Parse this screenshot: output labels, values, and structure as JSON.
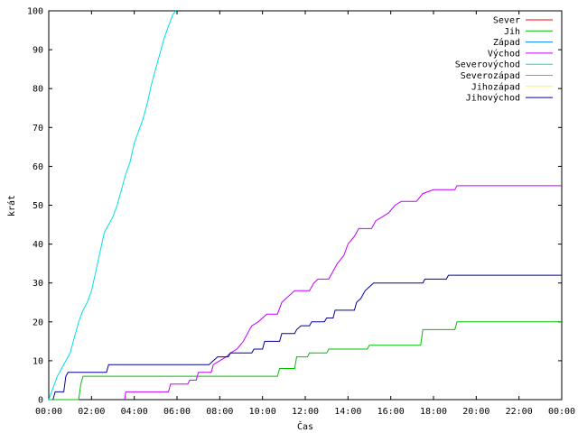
{
  "chart_data": {
    "type": "line",
    "xlabel": "Čas",
    "ylabel": "krát",
    "xlim": [
      0,
      24
    ],
    "ylim": [
      0,
      100
    ],
    "x_ticks": [
      {
        "x": 0,
        "label": "00:00"
      },
      {
        "x": 2,
        "label": "02:00"
      },
      {
        "x": 4,
        "label": "04:00"
      },
      {
        "x": 6,
        "label": "06:00"
      },
      {
        "x": 8,
        "label": "08:00"
      },
      {
        "x": 10,
        "label": "10:00"
      },
      {
        "x": 12,
        "label": "12:00"
      },
      {
        "x": 14,
        "label": "14:00"
      },
      {
        "x": 16,
        "label": "16:00"
      },
      {
        "x": 18,
        "label": "18:00"
      },
      {
        "x": 20,
        "label": "20:00"
      },
      {
        "x": 22,
        "label": "22:00"
      },
      {
        "x": 24,
        "label": "00:00"
      }
    ],
    "y_ticks": [
      0,
      10,
      20,
      30,
      40,
      50,
      60,
      70,
      80,
      90,
      100
    ],
    "legend_position": "top-right",
    "series": [
      {
        "name": "Sever",
        "color": "#ff0000",
        "points": []
      },
      {
        "name": "Jih",
        "color": "#00c000",
        "points": [
          [
            0,
            0
          ],
          [
            1.4,
            0
          ],
          [
            1.5,
            4
          ],
          [
            1.6,
            6
          ],
          [
            10.7,
            6
          ],
          [
            10.8,
            8
          ],
          [
            11.5,
            8
          ],
          [
            11.6,
            11
          ],
          [
            12.1,
            11
          ],
          [
            12.2,
            12
          ],
          [
            13.0,
            12
          ],
          [
            13.1,
            13
          ],
          [
            14.9,
            13
          ],
          [
            15.0,
            14
          ],
          [
            17.4,
            14
          ],
          [
            17.5,
            18
          ],
          [
            19.0,
            18
          ],
          [
            19.1,
            20
          ],
          [
            24,
            20
          ]
        ]
      },
      {
        "name": "Západ",
        "color": "#0080ff",
        "points": []
      },
      {
        "name": "Východ",
        "color": "#c000ff",
        "points": [
          [
            3.55,
            0
          ],
          [
            3.6,
            2
          ],
          [
            5.6,
            2
          ],
          [
            5.7,
            4
          ],
          [
            6.5,
            4
          ],
          [
            6.6,
            5
          ],
          [
            6.9,
            5
          ],
          [
            7.0,
            7
          ],
          [
            7.6,
            7
          ],
          [
            7.7,
            9
          ],
          [
            8.0,
            10
          ],
          [
            8.3,
            11
          ],
          [
            8.5,
            12
          ],
          [
            8.8,
            13
          ],
          [
            9.1,
            15
          ],
          [
            9.3,
            17
          ],
          [
            9.5,
            19
          ],
          [
            9.8,
            20
          ],
          [
            10.0,
            21
          ],
          [
            10.2,
            22
          ],
          [
            10.7,
            22
          ],
          [
            10.9,
            25
          ],
          [
            11.1,
            26
          ],
          [
            11.3,
            27
          ],
          [
            11.5,
            28
          ],
          [
            12.2,
            28
          ],
          [
            12.4,
            30
          ],
          [
            12.6,
            31
          ],
          [
            13.1,
            31
          ],
          [
            13.3,
            33
          ],
          [
            13.5,
            35
          ],
          [
            13.8,
            37
          ],
          [
            14.0,
            40
          ],
          [
            14.3,
            42
          ],
          [
            14.5,
            44
          ],
          [
            15.1,
            44
          ],
          [
            15.3,
            46
          ],
          [
            15.6,
            47
          ],
          [
            15.9,
            48
          ],
          [
            16.2,
            50
          ],
          [
            16.5,
            51
          ],
          [
            17.2,
            51
          ],
          [
            17.5,
            53
          ],
          [
            18.0,
            54
          ],
          [
            19.0,
            54
          ],
          [
            19.1,
            55
          ],
          [
            24,
            55
          ]
        ]
      },
      {
        "name": "Severovýchod",
        "color": "#00e0e0",
        "points": [
          [
            0,
            0
          ],
          [
            0.2,
            3
          ],
          [
            0.4,
            6
          ],
          [
            0.6,
            8
          ],
          [
            0.8,
            10
          ],
          [
            1.0,
            12
          ],
          [
            1.2,
            16
          ],
          [
            1.4,
            20
          ],
          [
            1.6,
            23
          ],
          [
            1.8,
            25
          ],
          [
            2.0,
            28
          ],
          [
            2.2,
            33
          ],
          [
            2.4,
            38
          ],
          [
            2.6,
            43
          ],
          [
            2.8,
            45
          ],
          [
            3.0,
            47
          ],
          [
            3.2,
            50
          ],
          [
            3.4,
            54
          ],
          [
            3.6,
            58
          ],
          [
            3.8,
            61
          ],
          [
            4.0,
            66
          ],
          [
            4.2,
            69
          ],
          [
            4.4,
            72
          ],
          [
            4.6,
            76
          ],
          [
            4.8,
            81
          ],
          [
            5.0,
            85
          ],
          [
            5.2,
            89
          ],
          [
            5.4,
            93
          ],
          [
            5.6,
            96
          ],
          [
            5.8,
            99
          ],
          [
            5.95,
            100
          ]
        ]
      },
      {
        "name": "Severozápad",
        "color": "#ff8000",
        "points": []
      },
      {
        "name": "Jihozápad",
        "color": "#ffff00",
        "points": []
      },
      {
        "name": "Jihovýchod",
        "color": "#0000a0",
        "points": [
          [
            0.2,
            0
          ],
          [
            0.3,
            2
          ],
          [
            0.7,
            2
          ],
          [
            0.8,
            6
          ],
          [
            0.9,
            7
          ],
          [
            2.7,
            7
          ],
          [
            2.8,
            9
          ],
          [
            7.5,
            9
          ],
          [
            7.7,
            10
          ],
          [
            7.9,
            11
          ],
          [
            8.4,
            11
          ],
          [
            8.5,
            12
          ],
          [
            9.5,
            12
          ],
          [
            9.6,
            13
          ],
          [
            10.0,
            13
          ],
          [
            10.1,
            15
          ],
          [
            10.8,
            15
          ],
          [
            10.9,
            17
          ],
          [
            11.5,
            17
          ],
          [
            11.6,
            18
          ],
          [
            11.8,
            19
          ],
          [
            12.2,
            19
          ],
          [
            12.3,
            20
          ],
          [
            12.9,
            20
          ],
          [
            13.0,
            21
          ],
          [
            13.3,
            21
          ],
          [
            13.4,
            23
          ],
          [
            14.3,
            23
          ],
          [
            14.4,
            25
          ],
          [
            14.6,
            26
          ],
          [
            14.8,
            28
          ],
          [
            15.0,
            29
          ],
          [
            15.2,
            30
          ],
          [
            17.5,
            30
          ],
          [
            17.6,
            31
          ],
          [
            18.6,
            31
          ],
          [
            18.7,
            32
          ],
          [
            24,
            32
          ]
        ]
      }
    ]
  }
}
